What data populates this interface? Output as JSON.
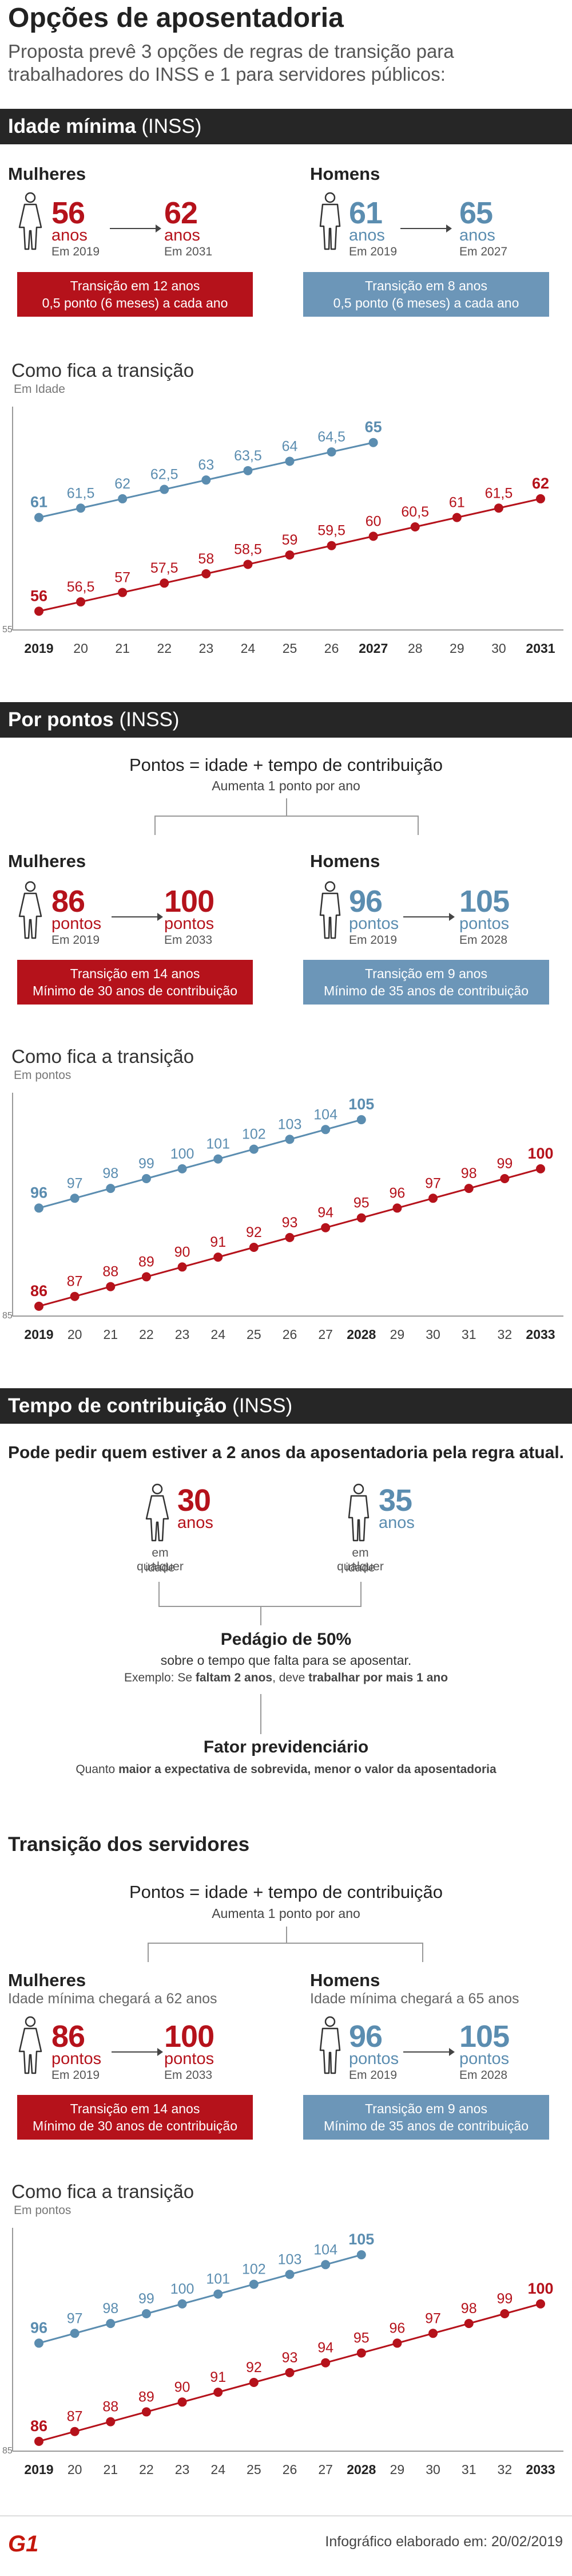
{
  "title": "Opções de aposentadoria",
  "subtitle": "Proposta prevê 3 opções de regras de transição para trabalhadores do INSS e 1 para servidores públicos:",
  "colors": {
    "red": "#b5121b",
    "blue": "#5b8db0",
    "header_bg": "#262626"
  },
  "s1": {
    "header_bold": "Idade mínima",
    "header_rest": " (INSS)",
    "women": {
      "label": "Mulheres",
      "from_num": "56",
      "from_unit": "anos",
      "from_year": "Em 2019",
      "to_num": "62",
      "to_unit": "anos",
      "to_year": "Em 2031",
      "band_line1": "Transição em 12 anos",
      "band_line2": "0,5 ponto (6 meses) a cada ano"
    },
    "men": {
      "label": "Homens",
      "from_num": "61",
      "from_unit": "anos",
      "from_year": "Em 2019",
      "to_num": "65",
      "to_unit": "anos",
      "to_year": "Em 2027",
      "band_line1": "Transição em 8 anos",
      "band_line2": "0,5 ponto (6 meses) a cada ano"
    },
    "chart_title": "Como fica a transição",
    "chart_sub": "Em Idade"
  },
  "s2": {
    "header_bold": "Por pontos",
    "header_rest": " (INSS)",
    "formula": "Pontos = idade + tempo de contribuição",
    "formula_sub": "Aumenta 1 ponto por ano",
    "women": {
      "label": "Mulheres",
      "from_num": "86",
      "from_unit": "pontos",
      "from_year": "Em 2019",
      "to_num": "100",
      "to_unit": "pontos",
      "to_year": "Em 2033",
      "band_line1": "Transição em 14 anos",
      "band_line2": "Mínimo de 30 anos de contribuição"
    },
    "men": {
      "label": "Homens",
      "from_num": "96",
      "from_unit": "pontos",
      "from_year": "Em 2019",
      "to_num": "105",
      "to_unit": "pontos",
      "to_year": "Em 2028",
      "band_line1": "Transição em 9 anos",
      "band_line2": "Mínimo de 35 anos de contribuição"
    },
    "chart_title": "Como fica a transição",
    "chart_sub": "Em pontos"
  },
  "s3": {
    "header_bold": "Tempo de contribuição",
    "header_rest": " (INSS)",
    "lead": "Pode pedir quem estiver a 2 anos da aposentadoria pela regra atual.",
    "women": {
      "num": "30",
      "unit": "anos",
      "cap1": "em qualquer",
      "cap2": "idade"
    },
    "men": {
      "num": "35",
      "unit": "anos",
      "cap1": "em qualquer",
      "cap2": "idade"
    },
    "pedagio_title": "Pedágio de 50%",
    "pedagio_sub": "sobre o tempo que falta para se aposentar.",
    "pedagio_ex_a": "Exemplo:  Se ",
    "pedagio_ex_b": "faltam 2 anos",
    "pedagio_ex_c": ", deve ",
    "pedagio_ex_d": "trabalhar por mais 1 ano",
    "fator_title": "Fator previdenciário",
    "fator_a": "Quanto ",
    "fator_b": "maior a expectativa de sobrevida, menor o valor da aposentadoria"
  },
  "s4": {
    "header_bold": "Transição dos servidores",
    "formula": "Pontos = idade + tempo de contribuição",
    "formula_sub": "Aumenta 1 ponto por ano",
    "women": {
      "label": "Mulheres",
      "sub": "Idade mínima chegará a 62 anos",
      "from_num": "86",
      "from_unit": "pontos",
      "from_year": "Em 2019",
      "to_num": "100",
      "to_unit": "pontos",
      "to_year": "Em 2033",
      "band_line1": "Transição em 14 anos",
      "band_line2": "Mínimo de 30 anos de contribuição"
    },
    "men": {
      "label": "Homens",
      "sub": "Idade mínima chegará a 65 anos",
      "from_num": "96",
      "from_unit": "pontos",
      "from_year": "Em 2019",
      "to_num": "105",
      "to_unit": "pontos",
      "to_year": "Em 2028",
      "band_line1": "Transição em 9 anos",
      "band_line2": "Mínimo de 35 anos de contribuição"
    },
    "chart_title": "Como fica a transição",
    "chart_sub": "Em pontos"
  },
  "footer": {
    "logo": "G1",
    "text": "Infográfico elaborado em: 20/02/2019"
  },
  "chart_data": [
    {
      "type": "line",
      "title": "Como fica a transição",
      "ylabel": "Em Idade",
      "ymin_label": "55",
      "ylim": [
        55,
        66
      ],
      "x_tick_labels": [
        "2019",
        "20",
        "21",
        "22",
        "23",
        "24",
        "25",
        "26",
        "2027",
        "28",
        "29",
        "30",
        "2031"
      ],
      "bold_ticks": [
        "2019",
        "2027",
        "2031"
      ],
      "series": [
        {
          "name": "Mulheres",
          "color": "#b5121b",
          "x_index": [
            0,
            1,
            2,
            3,
            4,
            5,
            6,
            7,
            8,
            9,
            10,
            11,
            12
          ],
          "values": [
            56,
            56.5,
            57,
            57.5,
            58,
            58.5,
            59,
            59.5,
            60,
            60.5,
            61,
            61.5,
            62
          ],
          "labels": [
            "56",
            "56,5",
            "57",
            "57,5",
            "58",
            "58,5",
            "59",
            "59,5",
            "60",
            "60,5",
            "61",
            "61,5",
            "62"
          ]
        },
        {
          "name": "Homens",
          "color": "#5b8db0",
          "x_index": [
            0,
            1,
            2,
            3,
            4,
            5,
            6,
            7,
            8
          ],
          "values": [
            61,
            61.5,
            62,
            62.5,
            63,
            63.5,
            64,
            64.5,
            65
          ],
          "labels": [
            "61",
            "61,5",
            "62",
            "62,5",
            "63",
            "63,5",
            "64",
            "64,5",
            "65"
          ]
        }
      ]
    },
    {
      "type": "line",
      "title": "Como fica a transição",
      "ylabel": "Em pontos",
      "ymin_label": "85",
      "ylim": [
        85,
        106
      ],
      "x_tick_labels": [
        "2019",
        "20",
        "21",
        "22",
        "23",
        "24",
        "25",
        "26",
        "27",
        "2028",
        "29",
        "30",
        "31",
        "32",
        "2033"
      ],
      "bold_ticks": [
        "2019",
        "2028",
        "2033"
      ],
      "series": [
        {
          "name": "Mulheres",
          "color": "#b5121b",
          "x_index": [
            0,
            1,
            2,
            3,
            4,
            5,
            6,
            7,
            8,
            9,
            10,
            11,
            12,
            13,
            14
          ],
          "values": [
            86,
            87,
            88,
            89,
            90,
            91,
            92,
            93,
            94,
            95,
            96,
            97,
            98,
            99,
            100
          ],
          "labels": [
            "86",
            "87",
            "88",
            "89",
            "90",
            "91",
            "92",
            "93",
            "94",
            "95",
            "96",
            "97",
            "98",
            "99",
            "100"
          ]
        },
        {
          "name": "Homens",
          "color": "#5b8db0",
          "x_index": [
            0,
            1,
            2,
            3,
            4,
            5,
            6,
            7,
            8,
            9
          ],
          "values": [
            96,
            97,
            98,
            99,
            100,
            101,
            102,
            103,
            104,
            105
          ],
          "labels": [
            "96",
            "97",
            "98",
            "99",
            "100",
            "101",
            "102",
            "103",
            "104",
            "105"
          ]
        }
      ]
    },
    {
      "type": "line",
      "title": "Como fica a transição",
      "ylabel": "Em pontos",
      "ymin_label": "85",
      "ylim": [
        85,
        106
      ],
      "x_tick_labels": [
        "2019",
        "20",
        "21",
        "22",
        "23",
        "24",
        "25",
        "26",
        "27",
        "2028",
        "29",
        "30",
        "31",
        "32",
        "2033"
      ],
      "bold_ticks": [
        "2019",
        "2028",
        "2033"
      ],
      "series": [
        {
          "name": "Mulheres",
          "color": "#b5121b",
          "x_index": [
            0,
            1,
            2,
            3,
            4,
            5,
            6,
            7,
            8,
            9,
            10,
            11,
            12,
            13,
            14
          ],
          "values": [
            86,
            87,
            88,
            89,
            90,
            91,
            92,
            93,
            94,
            95,
            96,
            97,
            98,
            99,
            100
          ],
          "labels": [
            "86",
            "87",
            "88",
            "89",
            "90",
            "91",
            "92",
            "93",
            "94",
            "95",
            "96",
            "97",
            "98",
            "99",
            "100"
          ]
        },
        {
          "name": "Homens",
          "color": "#5b8db0",
          "x_index": [
            0,
            1,
            2,
            3,
            4,
            5,
            6,
            7,
            8,
            9
          ],
          "values": [
            96,
            97,
            98,
            99,
            100,
            101,
            102,
            103,
            104,
            105
          ],
          "labels": [
            "96",
            "97",
            "98",
            "99",
            "100",
            "101",
            "102",
            "103",
            "104",
            "105"
          ]
        }
      ]
    }
  ]
}
